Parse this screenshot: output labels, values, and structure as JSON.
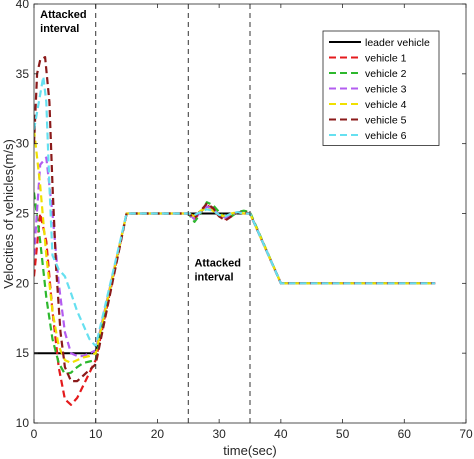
{
  "chart_data": {
    "type": "line",
    "title": "",
    "xlabel": "time(sec)",
    "ylabel": "Velocities of vehicles(m/s)",
    "xlim": [
      0,
      70
    ],
    "ylim": [
      10,
      40
    ],
    "xticks": [
      0,
      10,
      20,
      30,
      40,
      50,
      60,
      70
    ],
    "yticks": [
      10,
      15,
      20,
      25,
      30,
      35,
      40
    ],
    "grid": false,
    "legend_position": "top-right",
    "attack_intervals": [
      [
        0,
        10
      ],
      [
        25,
        35
      ]
    ],
    "annotations": [
      {
        "lines": [
          "Attacked",
          "interval"
        ],
        "x": 1,
        "y": 39.0
      },
      {
        "lines": [
          "Attacked",
          "interval"
        ],
        "x": 26,
        "y": 21.2
      }
    ],
    "series": [
      {
        "name": "leader vehicle",
        "color": "#000000",
        "style": "solid",
        "points": [
          [
            0,
            15
          ],
          [
            10,
            15
          ],
          [
            15,
            25
          ],
          [
            35,
            25
          ],
          [
            40,
            20
          ],
          [
            65,
            20
          ]
        ]
      },
      {
        "name": "vehicle 1",
        "color": "#e41a1c",
        "style": "dash",
        "points": [
          [
            0,
            20.5
          ],
          [
            1,
            25
          ],
          [
            2,
            23
          ],
          [
            3,
            18
          ],
          [
            4,
            14
          ],
          [
            5,
            11.7
          ],
          [
            6,
            11.3
          ],
          [
            7,
            11.8
          ],
          [
            8,
            12.7
          ],
          [
            9,
            13.6
          ],
          [
            10,
            14.5
          ],
          [
            15,
            25
          ],
          [
            25,
            25
          ],
          [
            26,
            24.6
          ],
          [
            27,
            25.1
          ],
          [
            28,
            25.6
          ],
          [
            29,
            25.3
          ],
          [
            30,
            24.8
          ],
          [
            31,
            24.6
          ],
          [
            32,
            24.9
          ],
          [
            33,
            25.1
          ],
          [
            34,
            25
          ],
          [
            35,
            25
          ],
          [
            40,
            20
          ],
          [
            65,
            20
          ]
        ]
      },
      {
        "name": "vehicle 2",
        "color": "#2db82d",
        "style": "dash",
        "points": [
          [
            0,
            26.5
          ],
          [
            1,
            23
          ],
          [
            2,
            19
          ],
          [
            3,
            16
          ],
          [
            4,
            14.3
          ],
          [
            5,
            13.5
          ],
          [
            6,
            13.6
          ],
          [
            7,
            14
          ],
          [
            8,
            14.3
          ],
          [
            9,
            14.4
          ],
          [
            10,
            14.5
          ],
          [
            15,
            25
          ],
          [
            25,
            25
          ],
          [
            26,
            24.4
          ],
          [
            27,
            25
          ],
          [
            28,
            25.8
          ],
          [
            29,
            25.6
          ],
          [
            30,
            25.1
          ],
          [
            31,
            24.7
          ],
          [
            32,
            24.8
          ],
          [
            33,
            25.1
          ],
          [
            34,
            25.2
          ],
          [
            35,
            25.1
          ],
          [
            40,
            20
          ],
          [
            65,
            20
          ]
        ]
      },
      {
        "name": "vehicle 3",
        "color": "#b35cf0",
        "style": "dash",
        "points": [
          [
            0,
            22
          ],
          [
            1,
            28.5
          ],
          [
            2,
            29
          ],
          [
            3,
            25
          ],
          [
            4,
            20
          ],
          [
            5,
            16.5
          ],
          [
            6,
            15
          ],
          [
            7,
            14.8
          ],
          [
            8,
            14.8
          ],
          [
            9,
            15
          ],
          [
            10,
            15.2
          ],
          [
            15,
            25
          ],
          [
            25,
            25
          ],
          [
            26,
            24.6
          ],
          [
            27,
            25.1
          ],
          [
            28,
            25.5
          ],
          [
            29,
            25.3
          ],
          [
            30,
            24.9
          ],
          [
            31,
            24.7
          ],
          [
            32,
            24.9
          ],
          [
            33,
            25.1
          ],
          [
            34,
            25
          ],
          [
            35,
            25
          ],
          [
            40,
            20
          ],
          [
            65,
            20
          ]
        ]
      },
      {
        "name": "vehicle 4",
        "color": "#f0e000",
        "style": "dash",
        "points": [
          [
            0,
            31
          ],
          [
            1,
            27
          ],
          [
            2,
            22
          ],
          [
            3,
            18
          ],
          [
            4,
            15.5
          ],
          [
            5,
            14.5
          ],
          [
            6,
            14.3
          ],
          [
            7,
            14.5
          ],
          [
            8,
            14.7
          ],
          [
            9,
            14.8
          ],
          [
            10,
            15
          ],
          [
            15,
            25
          ],
          [
            25,
            25
          ],
          [
            26,
            24.8
          ],
          [
            27,
            25.2
          ],
          [
            28,
            25.4
          ],
          [
            29,
            25.2
          ],
          [
            30,
            24.9
          ],
          [
            31,
            24.8
          ],
          [
            32,
            25
          ],
          [
            33,
            25.1
          ],
          [
            34,
            25
          ],
          [
            35,
            25
          ],
          [
            40,
            20
          ],
          [
            65,
            20
          ]
        ]
      },
      {
        "name": "vehicle 5",
        "color": "#8b1a1a",
        "style": "dash",
        "points": [
          [
            0,
            30
          ],
          [
            0.5,
            35
          ],
          [
            1,
            36
          ],
          [
            1.8,
            36.2
          ],
          [
            2.5,
            33
          ],
          [
            3,
            27
          ],
          [
            3.6,
            21
          ],
          [
            4.3,
            16.5
          ],
          [
            5,
            14
          ],
          [
            6,
            13
          ],
          [
            7,
            13
          ],
          [
            8,
            13.4
          ],
          [
            9,
            13.8
          ],
          [
            10,
            14.2
          ],
          [
            15,
            25
          ],
          [
            25,
            25
          ],
          [
            26,
            24.7
          ],
          [
            27,
            25.2
          ],
          [
            28,
            25.7
          ],
          [
            29,
            25.4
          ],
          [
            30,
            24.8
          ],
          [
            31,
            24.5
          ],
          [
            32,
            24.8
          ],
          [
            33,
            25.1
          ],
          [
            34,
            25.1
          ],
          [
            35,
            25
          ],
          [
            40,
            20
          ],
          [
            65,
            20
          ]
        ]
      },
      {
        "name": "vehicle 6",
        "color": "#66e0f0",
        "style": "dash",
        "points": [
          [
            0,
            31
          ],
          [
            0.8,
            33
          ],
          [
            1.5,
            34.8
          ],
          [
            2,
            33
          ],
          [
            2.5,
            27
          ],
          [
            3,
            22
          ],
          [
            4,
            21
          ],
          [
            5,
            20.5
          ],
          [
            6,
            19.3
          ],
          [
            7,
            18
          ],
          [
            8,
            17
          ],
          [
            9,
            16
          ],
          [
            10,
            15.5
          ],
          [
            15,
            25
          ],
          [
            25,
            25
          ],
          [
            26,
            24.9
          ],
          [
            27,
            25.1
          ],
          [
            28,
            25.3
          ],
          [
            29,
            25.2
          ],
          [
            30,
            24.9
          ],
          [
            31,
            24.8
          ],
          [
            32,
            25
          ],
          [
            33,
            25.1
          ],
          [
            34,
            25
          ],
          [
            35,
            25
          ],
          [
            40,
            20
          ],
          [
            65,
            20
          ]
        ]
      }
    ]
  }
}
